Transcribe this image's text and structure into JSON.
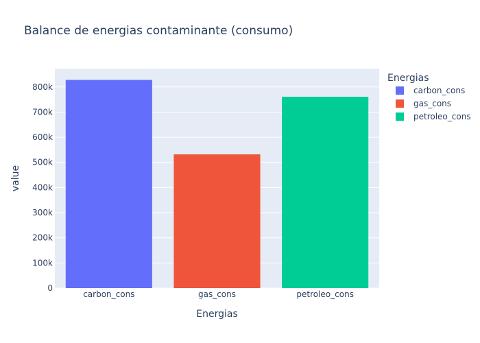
{
  "chart_data": {
    "type": "bar",
    "title": "Balance de energias contaminante (consumo)",
    "xlabel": "Energias",
    "ylabel": "value",
    "categories": [
      "carbon_cons",
      "gas_cons",
      "petroleo_cons"
    ],
    "values": [
      828000,
      532000,
      761000
    ],
    "colors": [
      "#636efa",
      "#ef553b",
      "#00cc96"
    ],
    "ylim": [
      0,
      873000
    ],
    "yticks": [
      0,
      100000,
      200000,
      300000,
      400000,
      500000,
      600000,
      700000,
      800000
    ],
    "ytick_labels": [
      "0",
      "100k",
      "200k",
      "300k",
      "400k",
      "500k",
      "600k",
      "700k",
      "800k"
    ],
    "grid": true,
    "legend": {
      "title": "Energias",
      "placement": "right",
      "entries": [
        "carbon_cons",
        "gas_cons",
        "petroleo_cons"
      ]
    }
  }
}
